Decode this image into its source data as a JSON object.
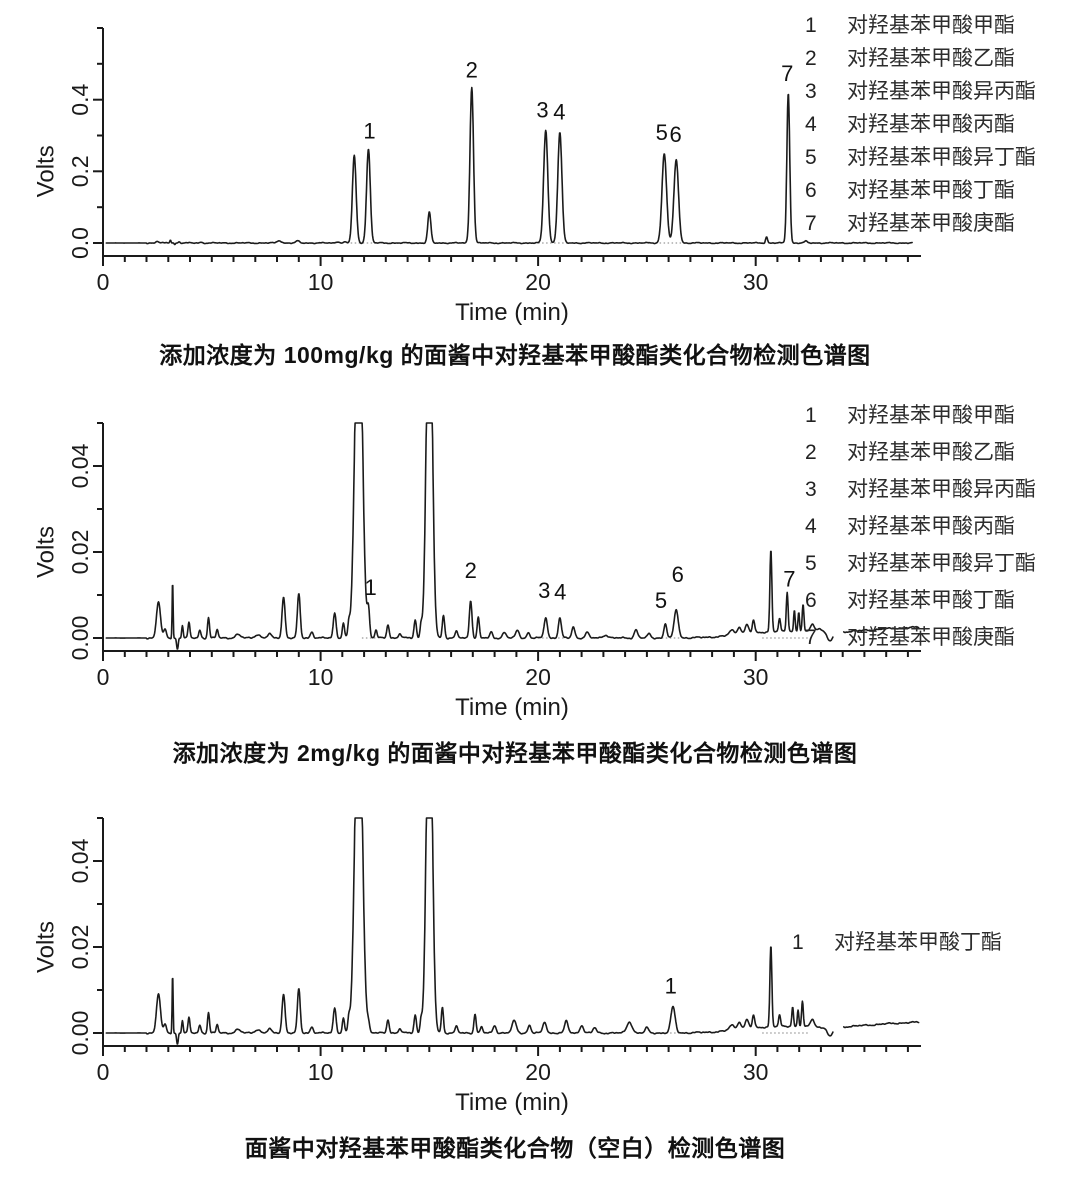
{
  "page": {
    "background": "#ffffff",
    "ink": "#1a1a1a",
    "trace_color": "#1b1b1b",
    "legend_color": "#2d2d2d"
  },
  "chart_data": [
    {
      "type": "line",
      "title": "添加浓度为 100mg/kg 的面酱中对羟基苯甲酸酯类化合物检测色谱图",
      "xlabel": "Time (min)",
      "ylabel": "Volts",
      "x_range": [
        0,
        37.6
      ],
      "y_range": [
        0,
        0.6
      ],
      "x_major_ticks": [
        {
          "v": 0,
          "label": "0"
        },
        {
          "v": 10,
          "label": "10"
        },
        {
          "v": 20,
          "label": "20"
        },
        {
          "v": 30,
          "label": "30"
        }
      ],
      "x_minor_step": 1,
      "x_minor_end": 37,
      "y_ticks": [
        {
          "v": 0.0,
          "label": "0.0"
        },
        {
          "v": 0.1
        },
        {
          "v": 0.2,
          "label": "0.2"
        },
        {
          "v": 0.3
        },
        {
          "v": 0.4,
          "label": "0.4"
        },
        {
          "v": 0.5
        },
        {
          "v": 0.6
        }
      ],
      "noise": 0.002,
      "segments": [
        [
          0.15,
          37.2
        ]
      ],
      "dotted_baselines": [
        [
          11.2,
          12.6
        ],
        [
          20.0,
          21.4
        ],
        [
          25.4,
          26.8
        ]
      ],
      "peaks": [
        [
          2.5,
          0.005,
          0.06
        ],
        [
          3.1,
          0.009,
          0.03
        ],
        [
          3.3,
          -0.004,
          0.025
        ],
        [
          3.5,
          0.003,
          0.05
        ],
        [
          4.5,
          0.002,
          0.06
        ],
        [
          8.1,
          0.007,
          0.09
        ],
        [
          8.95,
          0.006,
          0.07
        ],
        [
          10.8,
          0.004,
          0.07
        ],
        [
          11.1,
          0.003,
          0.05
        ],
        [
          11.55,
          0.245,
          0.085
        ],
        [
          12.2,
          0.262,
          0.085
        ],
        [
          15.0,
          0.086,
          0.07
        ],
        [
          16.95,
          0.435,
          0.08
        ],
        [
          20.35,
          0.315,
          0.095
        ],
        [
          21.0,
          0.308,
          0.095
        ],
        [
          25.8,
          0.25,
          0.105
        ],
        [
          26.35,
          0.232,
          0.105
        ],
        [
          30.5,
          0.017,
          0.045
        ],
        [
          31.5,
          0.42,
          0.065
        ],
        [
          32.3,
          0.005,
          0.06
        ]
      ],
      "peak_labels": [
        {
          "text": "1",
          "t": 12.25,
          "v": 0.292
        },
        {
          "text": "2",
          "t": 16.95,
          "v": 0.462
        },
        {
          "text": "3",
          "t": 20.2,
          "v": 0.35
        },
        {
          "text": "4",
          "t": 20.98,
          "v": 0.345
        },
        {
          "text": "5",
          "t": 25.68,
          "v": 0.287
        },
        {
          "text": "6",
          "t": 26.32,
          "v": 0.282
        },
        {
          "text": "7",
          "t": 31.45,
          "v": 0.452
        }
      ],
      "legend": {
        "items": [
          {
            "num": "1",
            "name": "对羟基苯甲酸甲酯"
          },
          {
            "num": "2",
            "name": "对羟基苯甲酸乙酯"
          },
          {
            "num": "3",
            "name": "对羟基苯甲酸异丙酯"
          },
          {
            "num": "4",
            "name": "对羟基苯甲酸丙酯"
          },
          {
            "num": "5",
            "name": "对羟基苯甲酸异丁酯"
          },
          {
            "num": "6",
            "name": "对羟基苯甲酸丁酯"
          },
          {
            "num": "7",
            "name": "对羟基苯甲酸庚酯"
          }
        ]
      },
      "caption": {
        "pre": "添加浓度为 ",
        "bold": "100mg/kg",
        "post": " 的面酱中对羟基苯甲酸酯类化合物检测色谱图"
      }
    },
    {
      "type": "line",
      "title": "添加浓度为 2mg/kg 的面酱中对羟基苯甲酸酯类化合物检测色谱图",
      "xlabel": "Time (min)",
      "ylabel": "Volts",
      "x_range": [
        0,
        37.6
      ],
      "y_range": [
        0,
        0.05
      ],
      "x_major_ticks": [
        {
          "v": 0,
          "label": "0"
        },
        {
          "v": 10,
          "label": "10"
        },
        {
          "v": 20,
          "label": "20"
        },
        {
          "v": 30,
          "label": "30"
        }
      ],
      "x_minor_step": 1,
      "x_minor_end": 37,
      "y_ticks": [
        {
          "v": 0.0,
          "label": "0.00"
        },
        {
          "v": 0.01
        },
        {
          "v": 0.02,
          "label": "0.02"
        },
        {
          "v": 0.03
        },
        {
          "v": 0.04,
          "label": "0.04"
        },
        {
          "v": 0.05
        }
      ],
      "noise": 0.00025,
      "segments": [
        [
          0.15,
          33.55
        ],
        [
          34.05,
          37.5
        ]
      ],
      "dotted_baselines": [
        [
          11.9,
          12.6
        ],
        [
          20.0,
          21.3
        ],
        [
          25.5,
          26.8
        ],
        [
          30.3,
          32.5
        ]
      ],
      "peaks": [
        [
          2.55,
          0.0085,
          0.09
        ],
        [
          2.85,
          0.002,
          0.06
        ],
        [
          3.2,
          0.0135,
          0.022
        ],
        [
          3.42,
          -0.0028,
          0.035
        ],
        [
          3.65,
          0.003,
          0.035
        ],
        [
          3.95,
          0.0035,
          0.045
        ],
        [
          4.45,
          0.0018,
          0.05
        ],
        [
          4.85,
          0.0048,
          0.045
        ],
        [
          5.25,
          0.002,
          0.045
        ],
        [
          6.2,
          0.0008,
          0.12
        ],
        [
          7.1,
          0.0008,
          0.12
        ],
        [
          7.65,
          0.001,
          0.08
        ],
        [
          8.3,
          0.0095,
          0.07
        ],
        [
          9.0,
          0.0102,
          0.065
        ],
        [
          9.6,
          0.0014,
          0.07
        ],
        [
          10.65,
          0.0058,
          0.065
        ],
        [
          11.05,
          0.0035,
          0.05
        ],
        [
          11.3,
          0.003,
          0.045
        ],
        [
          11.75,
          0.09,
          0.16
        ],
        [
          12.2,
          0.0062,
          0.055
        ],
        [
          12.55,
          0.0018,
          0.05
        ],
        [
          13.1,
          0.0032,
          0.055
        ],
        [
          13.65,
          0.001,
          0.06
        ],
        [
          14.35,
          0.0042,
          0.055
        ],
        [
          14.62,
          0.0028,
          0.045
        ],
        [
          15.0,
          0.09,
          0.13
        ],
        [
          15.65,
          0.0052,
          0.055
        ],
        [
          16.25,
          0.0015,
          0.06
        ],
        [
          16.9,
          0.0088,
          0.06
        ],
        [
          17.25,
          0.0048,
          0.05
        ],
        [
          17.85,
          0.0014,
          0.06
        ],
        [
          18.45,
          0.0013,
          0.08
        ],
        [
          19.05,
          0.0018,
          0.08
        ],
        [
          19.55,
          0.0013,
          0.06
        ],
        [
          20.35,
          0.0048,
          0.075
        ],
        [
          21.0,
          0.0046,
          0.07
        ],
        [
          21.62,
          0.0026,
          0.07
        ],
        [
          22.25,
          0.0013,
          0.08
        ],
        [
          23.1,
          0.0007,
          0.12
        ],
        [
          24.5,
          0.0019,
          0.08
        ],
        [
          25.1,
          0.001,
          0.07
        ],
        [
          25.85,
          0.0034,
          0.065
        ],
        [
          26.35,
          0.0065,
          0.095
        ],
        [
          28.9,
          0.0012,
          0.12
        ],
        [
          29.25,
          0.0018,
          0.09
        ],
        [
          29.6,
          0.0022,
          0.08
        ],
        [
          29.9,
          0.003,
          0.055
        ],
        [
          30.7,
          0.0192,
          0.045
        ],
        [
          31.1,
          0.0028,
          0.045
        ],
        [
          31.45,
          0.0092,
          0.042
        ],
        [
          31.78,
          0.005,
          0.035
        ],
        [
          31.98,
          0.0046,
          0.035
        ],
        [
          32.18,
          0.0062,
          0.04
        ],
        [
          32.6,
          0.0018,
          0.09
        ],
        [
          32.95,
          0.0008,
          0.15
        ],
        [
          30.9,
          0.0012,
          1.5
        ],
        [
          33.42,
          -0.0022,
          0.12
        ],
        [
          38.0,
          0.0025,
          3.5
        ]
      ],
      "peak_labels": [
        {
          "text": "1",
          "t": 12.3,
          "v": 0.01
        },
        {
          "text": "2",
          "t": 16.9,
          "v": 0.014
        },
        {
          "text": "3",
          "t": 20.28,
          "v": 0.0093
        },
        {
          "text": "4",
          "t": 21.02,
          "v": 0.009
        },
        {
          "text": "5",
          "t": 25.65,
          "v": 0.007
        },
        {
          "text": "6",
          "t": 26.42,
          "v": 0.013
        },
        {
          "text": "7",
          "t": 31.55,
          "v": 0.012
        }
      ],
      "legend": {
        "items": [
          {
            "num": "1",
            "name": "对羟基苯甲酸甲酯"
          },
          {
            "num": "2",
            "name": "对羟基苯甲酸乙酯"
          },
          {
            "num": "3",
            "name": "对羟基苯甲酸异丙酯"
          },
          {
            "num": "4",
            "name": "对羟基苯甲酸丙酯"
          },
          {
            "num": "5",
            "name": "对羟基苯甲酸异丁酯"
          },
          {
            "num": "6",
            "name": "对羟基苯甲酸丁酯"
          },
          {
            "num": "7",
            "name": "对羟基苯甲酸庚酯"
          }
        ]
      },
      "caption": {
        "pre": "添加浓度为 ",
        "bold": "2mg/kg",
        "post": " 的面酱中对羟基苯甲酸酯类化合物检测色谱图"
      }
    },
    {
      "type": "line",
      "title": "面酱中对羟基苯甲酸酯类化合物（空白）检测色谱图",
      "xlabel": "Time (min)",
      "ylabel": "Volts",
      "x_range": [
        0,
        37.6
      ],
      "y_range": [
        0,
        0.05
      ],
      "x_major_ticks": [
        {
          "v": 0,
          "label": "0"
        },
        {
          "v": 10,
          "label": "10"
        },
        {
          "v": 20,
          "label": "20"
        },
        {
          "v": 30,
          "label": "30"
        }
      ],
      "x_minor_step": 1,
      "x_minor_end": 37,
      "y_ticks": [
        {
          "v": 0.0,
          "label": "0.00"
        },
        {
          "v": 0.01
        },
        {
          "v": 0.02,
          "label": "0.02"
        },
        {
          "v": 0.03
        },
        {
          "v": 0.04,
          "label": "0.04"
        },
        {
          "v": 0.05
        }
      ],
      "noise": 0.00025,
      "segments": [
        [
          0.15,
          33.55
        ],
        [
          34.05,
          37.5
        ]
      ],
      "dotted_baselines": [
        [
          25.7,
          26.9
        ],
        [
          30.3,
          32.5
        ]
      ],
      "peaks": [
        [
          2.55,
          0.0092,
          0.09
        ],
        [
          2.85,
          0.002,
          0.06
        ],
        [
          3.2,
          0.014,
          0.022
        ],
        [
          3.42,
          -0.0028,
          0.035
        ],
        [
          3.65,
          0.003,
          0.035
        ],
        [
          3.95,
          0.0035,
          0.045
        ],
        [
          4.45,
          0.0018,
          0.05
        ],
        [
          4.85,
          0.0048,
          0.045
        ],
        [
          5.25,
          0.002,
          0.045
        ],
        [
          6.2,
          0.0008,
          0.12
        ],
        [
          7.1,
          0.0008,
          0.12
        ],
        [
          7.65,
          0.001,
          0.08
        ],
        [
          8.3,
          0.009,
          0.07
        ],
        [
          9.0,
          0.0102,
          0.065
        ],
        [
          9.6,
          0.0014,
          0.07
        ],
        [
          10.65,
          0.0058,
          0.065
        ],
        [
          11.05,
          0.0035,
          0.05
        ],
        [
          11.3,
          0.003,
          0.045
        ],
        [
          11.75,
          0.09,
          0.16
        ],
        [
          12.2,
          0.0018,
          0.055
        ],
        [
          13.1,
          0.0032,
          0.055
        ],
        [
          13.65,
          0.001,
          0.06
        ],
        [
          14.35,
          0.0042,
          0.055
        ],
        [
          14.62,
          0.0028,
          0.045
        ],
        [
          15.0,
          0.09,
          0.13
        ],
        [
          15.6,
          0.006,
          0.05
        ],
        [
          16.25,
          0.0015,
          0.06
        ],
        [
          17.1,
          0.0045,
          0.05
        ],
        [
          17.4,
          0.0015,
          0.05
        ],
        [
          18.0,
          0.0018,
          0.07
        ],
        [
          18.9,
          0.0028,
          0.1
        ],
        [
          19.6,
          0.0018,
          0.07
        ],
        [
          20.3,
          0.0026,
          0.08
        ],
        [
          21.3,
          0.0028,
          0.08
        ],
        [
          22.0,
          0.0018,
          0.08
        ],
        [
          22.6,
          0.0012,
          0.08
        ],
        [
          24.2,
          0.0026,
          0.12
        ],
        [
          25.0,
          0.0012,
          0.08
        ],
        [
          26.2,
          0.006,
          0.1
        ],
        [
          28.9,
          0.0012,
          0.12
        ],
        [
          29.25,
          0.0018,
          0.09
        ],
        [
          29.6,
          0.0022,
          0.08
        ],
        [
          29.9,
          0.003,
          0.055
        ],
        [
          30.7,
          0.019,
          0.045
        ],
        [
          31.1,
          0.0025,
          0.045
        ],
        [
          31.7,
          0.0045,
          0.04
        ],
        [
          31.95,
          0.004,
          0.035
        ],
        [
          32.15,
          0.0058,
          0.04
        ],
        [
          32.6,
          0.0018,
          0.09
        ],
        [
          30.9,
          0.0012,
          1.5
        ],
        [
          33.42,
          -0.0022,
          0.12
        ],
        [
          38.0,
          0.0025,
          3.5
        ]
      ],
      "peak_labels": [
        {
          "text": "1",
          "t": 26.1,
          "v": 0.0092
        }
      ],
      "legend": {
        "items": [
          {
            "num": "1",
            "name": "对羟基苯甲酸丁酯"
          }
        ]
      },
      "caption": {
        "pre": "面酱中对羟基苯甲酸酯类化合物（空白）检测色谱图",
        "bold": "",
        "post": ""
      }
    }
  ]
}
